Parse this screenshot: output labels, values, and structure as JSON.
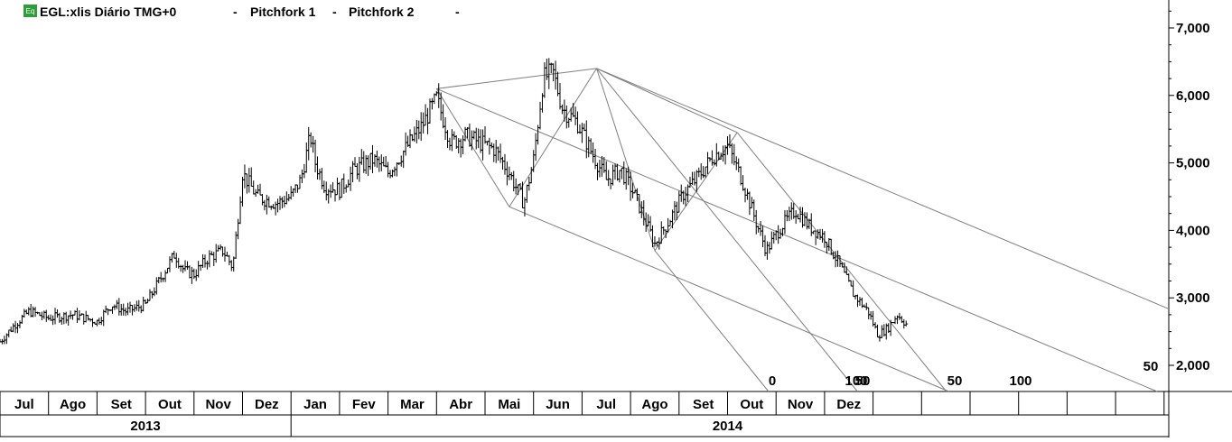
{
  "header": {
    "badge": "Eq",
    "symbol": "EGL:xlis Diário TMG+0",
    "sep1": "-",
    "study1": "Pitchfork 1",
    "sep2": "-",
    "study2": "Pitchfork 2",
    "sep3": "-"
  },
  "colors": {
    "background": "#ffffff",
    "price": "#000000",
    "pitchfork": "#7f7f7f",
    "badge": "#2e9e3a",
    "grid": "#000000"
  },
  "chart_data": {
    "type": "ohlc",
    "title": "EGL:xlis Diário TMG+0",
    "ylim": [
      1600,
      7400
    ],
    "yticks": [
      2000,
      3000,
      4000,
      5000,
      6000,
      7000
    ],
    "ytick_labels": [
      "2,000",
      "3,000",
      "4,000",
      "5,000",
      "6,000",
      "7,000"
    ],
    "months": [
      "Jul",
      "Ago",
      "Set",
      "Out",
      "Nov",
      "Dez",
      "Jan",
      "Fev",
      "Mar",
      "Abr",
      "Mai",
      "Jun",
      "Jul",
      "Ago",
      "Set",
      "Out",
      "Nov",
      "Dez"
    ],
    "years": [
      {
        "label": "2013",
        "start_month": 0,
        "end_month": 6
      },
      {
        "label": "2014",
        "start_month": 6,
        "end_month": 24
      }
    ],
    "price_path": [
      [
        0,
        2350
      ],
      [
        0.3,
        2600
      ],
      [
        0.6,
        2800
      ],
      [
        1.0,
        2700
      ],
      [
        1.5,
        2750
      ],
      [
        2.0,
        2650
      ],
      [
        2.3,
        2900
      ],
      [
        2.6,
        2800
      ],
      [
        3.0,
        2900
      ],
      [
        3.2,
        3150
      ],
      [
        3.6,
        3650
      ],
      [
        3.8,
        3400
      ],
      [
        4.0,
        3350
      ],
      [
        4.3,
        3600
      ],
      [
        4.6,
        3700
      ],
      [
        4.8,
        3450
      ],
      [
        5.0,
        4850
      ],
      [
        5.3,
        4500
      ],
      [
        5.7,
        4400
      ],
      [
        6.0,
        4500
      ],
      [
        6.2,
        4750
      ],
      [
        6.4,
        5400
      ],
      [
        6.5,
        5000
      ],
      [
        6.7,
        4650
      ],
      [
        7.0,
        4600
      ],
      [
        7.3,
        4900
      ],
      [
        7.7,
        5050
      ],
      [
        8.0,
        4850
      ],
      [
        8.3,
        5150
      ],
      [
        8.7,
        5550
      ],
      [
        9.0,
        5950
      ],
      [
        9.3,
        5300
      ],
      [
        9.6,
        5400
      ],
      [
        9.9,
        5300
      ],
      [
        10.2,
        5200
      ],
      [
        10.5,
        4850
      ],
      [
        10.8,
        4400
      ],
      [
        11.0,
        5050
      ],
      [
        11.2,
        6250
      ],
      [
        11.4,
        6350
      ],
      [
        11.6,
        5800
      ],
      [
        11.9,
        5600
      ],
      [
        12.2,
        5150
      ],
      [
        12.5,
        4750
      ],
      [
        12.8,
        4900
      ],
      [
        13.1,
        4500
      ],
      [
        13.5,
        3800
      ],
      [
        13.8,
        4150
      ],
      [
        14.1,
        4550
      ],
      [
        14.4,
        4800
      ],
      [
        14.7,
        5100
      ],
      [
        15.0,
        5250
      ],
      [
        15.3,
        4750
      ],
      [
        15.6,
        4100
      ],
      [
        15.8,
        3700
      ],
      [
        16.1,
        4050
      ],
      [
        16.4,
        4300
      ],
      [
        16.7,
        4050
      ],
      [
        17.0,
        3900
      ],
      [
        17.3,
        3500
      ],
      [
        17.6,
        3050
      ],
      [
        17.9,
        2800
      ],
      [
        18.1,
        2450
      ],
      [
        18.3,
        2550
      ],
      [
        18.5,
        2750
      ],
      [
        18.7,
        2600
      ]
    ],
    "pitchforks": [
      {
        "name": "Pitchfork 1",
        "pivots": [
          [
            9.0,
            6100
          ],
          [
            10.5,
            4350
          ],
          [
            12.3,
            6400
          ]
        ],
        "levels": [
          "0",
          "50",
          "100"
        ]
      },
      {
        "name": "Pitchfork 2",
        "pivots": [
          [
            12.3,
            6400
          ],
          [
            13.5,
            3700
          ],
          [
            15.2,
            5450
          ]
        ],
        "levels": [
          "0",
          "50",
          "100"
        ]
      }
    ],
    "fork_level_labels": [
      "0",
      "50",
      "100",
      "50",
      "100",
      "50"
    ]
  }
}
